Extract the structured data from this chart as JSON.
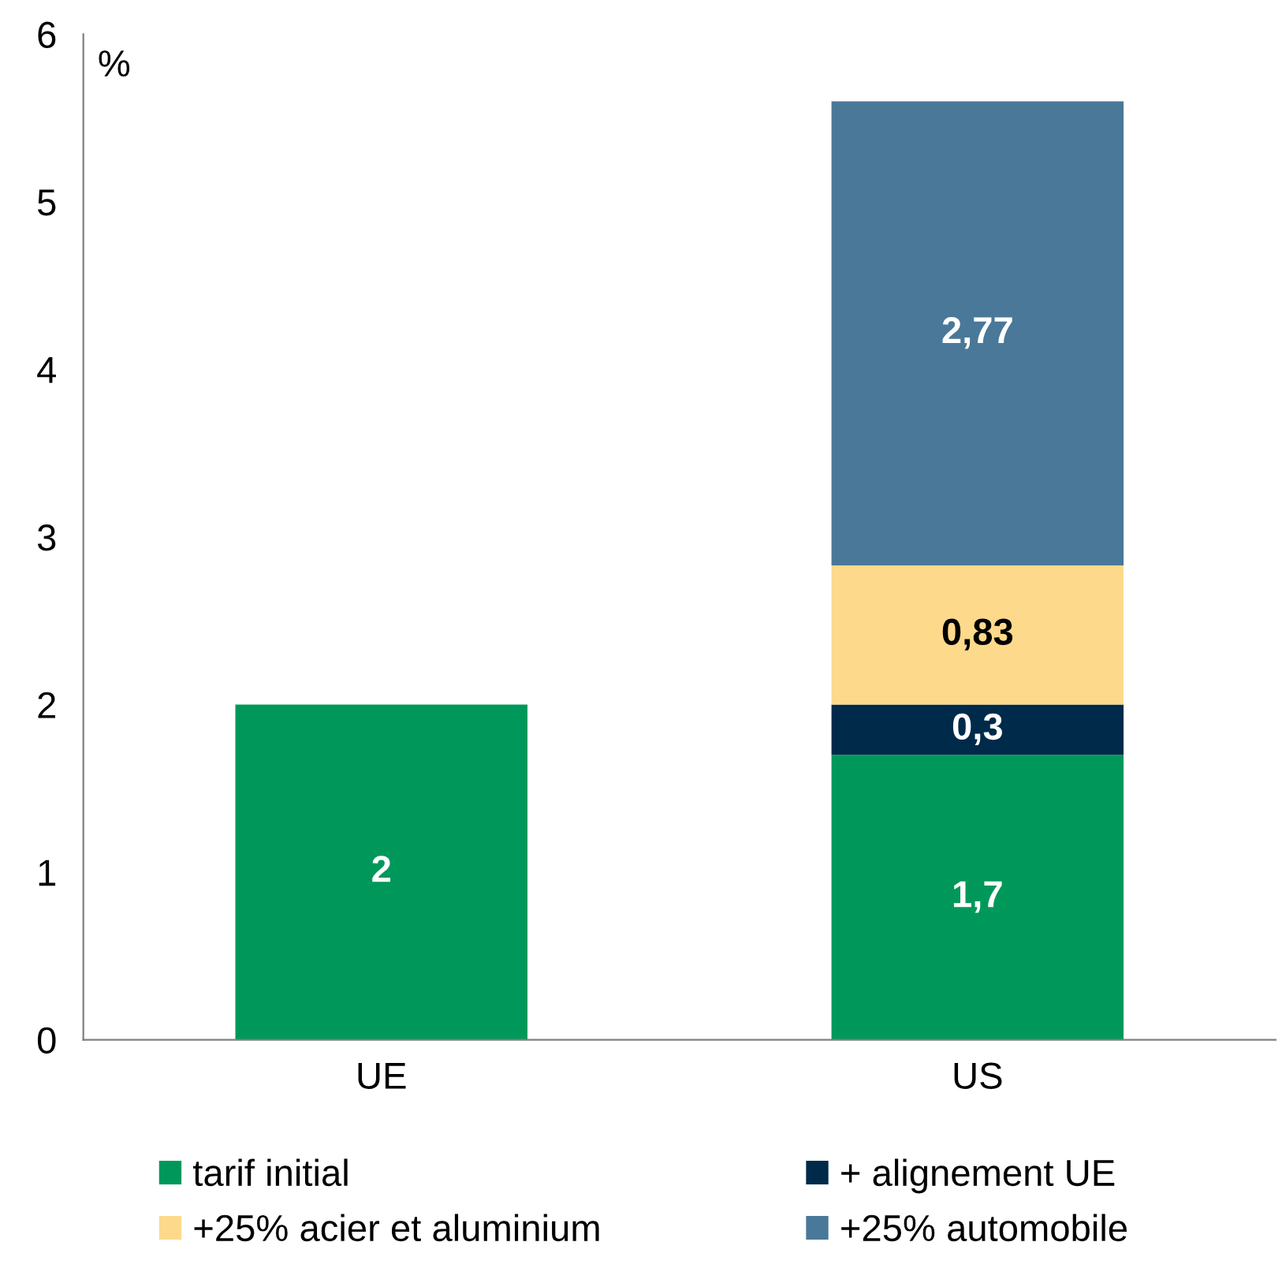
{
  "chart_data": {
    "type": "bar",
    "stacked": true,
    "ylabel": "%",
    "categories": [
      "UE",
      "US"
    ],
    "series": [
      {
        "name": "tarif initial",
        "color": "#00985a",
        "values": [
          2,
          1.7
        ],
        "value_labels": [
          "2",
          "1,7"
        ]
      },
      {
        "name": "+ alignement UE",
        "color": "#002a4a",
        "values": [
          null,
          0.3
        ],
        "value_labels": [
          null,
          "0,3"
        ]
      },
      {
        "name": "+25% acier et aluminium",
        "color": "#fdd98b",
        "values": [
          null,
          0.83
        ],
        "value_labels": [
          null,
          "0,83"
        ]
      },
      {
        "name": "+25% automobile",
        "color": "#4a7898",
        "values": [
          null,
          2.77
        ],
        "value_labels": [
          null,
          "2,77"
        ]
      }
    ],
    "ylim": [
      0,
      6
    ],
    "yticks": [
      0,
      1,
      2,
      3,
      4,
      5,
      6
    ],
    "grid": false,
    "legend": "bottom"
  }
}
